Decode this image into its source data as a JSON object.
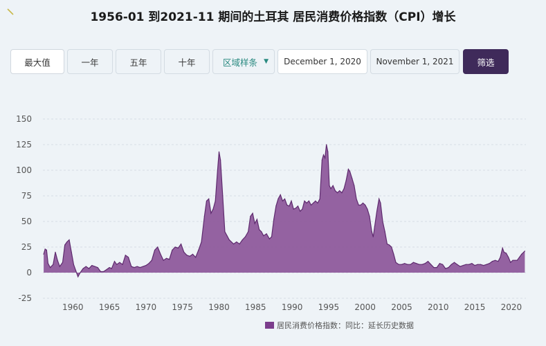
{
  "title": "1956-01 到2021-11 期间的土耳其 居民消费价格指数（CPI）增长",
  "toolbar": {
    "buttons": [
      "最大值",
      "一年",
      "五年",
      "十年"
    ],
    "select_value": "区域样条",
    "date_start": "December 1, 2020",
    "date_end": "November 1, 2021",
    "filter_label": "筛选"
  },
  "colors": {
    "series": "#8e5a9c",
    "series_line": "#5e2a6e",
    "filter_button": "#3f2a5a",
    "select_text": "#2a8a80"
  },
  "chart_data": {
    "type": "area",
    "title": "1956-01 到2021-11 期间的土耳其 居民消费价格指数（CPI）增长",
    "xlabel": "",
    "ylabel": "",
    "ylim": [
      -25,
      150
    ],
    "xlim": [
      1955.9,
      2022
    ],
    "y_ticks": [
      150,
      125,
      100,
      75,
      50,
      25,
      0,
      -25
    ],
    "x_ticks": [
      1960,
      1965,
      1970,
      1975,
      1980,
      1985,
      1990,
      1995,
      2000,
      2005,
      2010,
      2015,
      2020
    ],
    "grid": "horizontal dashed",
    "legend_position": "bottom",
    "series": [
      {
        "name": "居民消费价格指数：同比：延长历史数据",
        "points": [
          [
            1956.0,
            18
          ],
          [
            1956.2,
            23
          ],
          [
            1956.4,
            22
          ],
          [
            1956.6,
            9
          ],
          [
            1956.9,
            5
          ],
          [
            1957.3,
            8
          ],
          [
            1957.6,
            20
          ],
          [
            1957.9,
            12
          ],
          [
            1958.2,
            6
          ],
          [
            1958.6,
            10
          ],
          [
            1958.9,
            27
          ],
          [
            1959.2,
            30
          ],
          [
            1959.5,
            32
          ],
          [
            1959.8,
            20
          ],
          [
            1960.1,
            8
          ],
          [
            1960.4,
            2
          ],
          [
            1960.7,
            -4
          ],
          [
            1961.0,
            0
          ],
          [
            1961.4,
            4
          ],
          [
            1961.8,
            6
          ],
          [
            1962.2,
            4
          ],
          [
            1962.6,
            7
          ],
          [
            1963.0,
            6
          ],
          [
            1963.4,
            5
          ],
          [
            1963.8,
            1
          ],
          [
            1964.2,
            1
          ],
          [
            1964.6,
            3
          ],
          [
            1965.0,
            5
          ],
          [
            1965.3,
            4
          ],
          [
            1965.7,
            11
          ],
          [
            1966.0,
            8
          ],
          [
            1966.4,
            10
          ],
          [
            1966.8,
            8
          ],
          [
            1967.2,
            17
          ],
          [
            1967.6,
            15
          ],
          [
            1968.0,
            6
          ],
          [
            1968.4,
            5
          ],
          [
            1968.8,
            6
          ],
          [
            1969.2,
            5
          ],
          [
            1969.6,
            6
          ],
          [
            1970.0,
            7
          ],
          [
            1970.4,
            9
          ],
          [
            1970.8,
            12
          ],
          [
            1971.2,
            22
          ],
          [
            1971.6,
            25
          ],
          [
            1972.0,
            18
          ],
          [
            1972.4,
            12
          ],
          [
            1972.8,
            14
          ],
          [
            1973.2,
            13
          ],
          [
            1973.6,
            22
          ],
          [
            1974.0,
            25
          ],
          [
            1974.4,
            24
          ],
          [
            1974.8,
            28
          ],
          [
            1975.2,
            20
          ],
          [
            1975.6,
            17
          ],
          [
            1976.0,
            16
          ],
          [
            1976.4,
            18
          ],
          [
            1976.8,
            15
          ],
          [
            1977.2,
            22
          ],
          [
            1977.6,
            30
          ],
          [
            1978.0,
            55
          ],
          [
            1978.3,
            70
          ],
          [
            1978.6,
            72
          ],
          [
            1978.9,
            58
          ],
          [
            1979.2,
            62
          ],
          [
            1979.5,
            70
          ],
          [
            1979.8,
            100
          ],
          [
            1980.0,
            118
          ],
          [
            1980.2,
            110
          ],
          [
            1980.5,
            75
          ],
          [
            1980.8,
            40
          ],
          [
            1981.1,
            36
          ],
          [
            1981.4,
            32
          ],
          [
            1981.7,
            30
          ],
          [
            1982.0,
            28
          ],
          [
            1982.4,
            30
          ],
          [
            1982.8,
            28
          ],
          [
            1983.2,
            32
          ],
          [
            1983.6,
            35
          ],
          [
            1984.0,
            40
          ],
          [
            1984.3,
            55
          ],
          [
            1984.6,
            58
          ],
          [
            1984.9,
            48
          ],
          [
            1985.2,
            52
          ],
          [
            1985.5,
            42
          ],
          [
            1985.8,
            40
          ],
          [
            1986.1,
            36
          ],
          [
            1986.5,
            38
          ],
          [
            1986.9,
            33
          ],
          [
            1987.2,
            35
          ],
          [
            1987.5,
            52
          ],
          [
            1987.8,
            65
          ],
          [
            1988.1,
            72
          ],
          [
            1988.4,
            76
          ],
          [
            1988.7,
            70
          ],
          [
            1989.0,
            72
          ],
          [
            1989.3,
            66
          ],
          [
            1989.6,
            65
          ],
          [
            1989.9,
            70
          ],
          [
            1990.2,
            62
          ],
          [
            1990.5,
            63
          ],
          [
            1990.8,
            65
          ],
          [
            1991.1,
            60
          ],
          [
            1991.4,
            62
          ],
          [
            1991.7,
            70
          ],
          [
            1992.0,
            68
          ],
          [
            1992.3,
            70
          ],
          [
            1992.6,
            66
          ],
          [
            1992.9,
            68
          ],
          [
            1993.2,
            70
          ],
          [
            1993.5,
            68
          ],
          [
            1993.8,
            72
          ],
          [
            1994.1,
            110
          ],
          [
            1994.3,
            115
          ],
          [
            1994.5,
            112
          ],
          [
            1994.7,
            125
          ],
          [
            1994.9,
            118
          ],
          [
            1995.1,
            85
          ],
          [
            1995.3,
            82
          ],
          [
            1995.6,
            85
          ],
          [
            1995.9,
            80
          ],
          [
            1996.2,
            78
          ],
          [
            1996.5,
            80
          ],
          [
            1996.8,
            78
          ],
          [
            1997.1,
            82
          ],
          [
            1997.4,
            90
          ],
          [
            1997.7,
            101
          ],
          [
            1997.9,
            99
          ],
          [
            1998.2,
            92
          ],
          [
            1998.5,
            85
          ],
          [
            1998.8,
            72
          ],
          [
            1999.1,
            66
          ],
          [
            1999.4,
            66
          ],
          [
            1999.7,
            68
          ],
          [
            2000.0,
            66
          ],
          [
            2000.3,
            62
          ],
          [
            2000.6,
            55
          ],
          [
            2000.9,
            40
          ],
          [
            2001.1,
            35
          ],
          [
            2001.3,
            45
          ],
          [
            2001.6,
            60
          ],
          [
            2001.9,
            72
          ],
          [
            2002.1,
            68
          ],
          [
            2002.4,
            50
          ],
          [
            2002.7,
            40
          ],
          [
            2003.0,
            28
          ],
          [
            2003.3,
            27
          ],
          [
            2003.6,
            25
          ],
          [
            2003.9,
            18
          ],
          [
            2004.2,
            10
          ],
          [
            2004.6,
            8
          ],
          [
            2005.0,
            8
          ],
          [
            2005.4,
            9
          ],
          [
            2005.8,
            8
          ],
          [
            2006.2,
            8
          ],
          [
            2006.6,
            10
          ],
          [
            2007.0,
            9
          ],
          [
            2007.4,
            8
          ],
          [
            2007.8,
            8
          ],
          [
            2008.2,
            9
          ],
          [
            2008.6,
            11
          ],
          [
            2009.0,
            8
          ],
          [
            2009.4,
            5
          ],
          [
            2009.8,
            5
          ],
          [
            2010.2,
            9
          ],
          [
            2010.6,
            8
          ],
          [
            2011.0,
            4
          ],
          [
            2011.4,
            5
          ],
          [
            2011.8,
            8
          ],
          [
            2012.2,
            10
          ],
          [
            2012.6,
            8
          ],
          [
            2013.0,
            6
          ],
          [
            2013.4,
            7
          ],
          [
            2013.8,
            8
          ],
          [
            2014.2,
            8
          ],
          [
            2014.6,
            9
          ],
          [
            2015.0,
            7
          ],
          [
            2015.4,
            8
          ],
          [
            2015.8,
            8
          ],
          [
            2016.2,
            7
          ],
          [
            2016.6,
            8
          ],
          [
            2017.0,
            9
          ],
          [
            2017.4,
            11
          ],
          [
            2017.8,
            12
          ],
          [
            2018.2,
            11
          ],
          [
            2018.5,
            15
          ],
          [
            2018.8,
            24
          ],
          [
            2019.0,
            20
          ],
          [
            2019.3,
            19
          ],
          [
            2019.6,
            15
          ],
          [
            2019.9,
            10
          ],
          [
            2020.2,
            12
          ],
          [
            2020.5,
            12
          ],
          [
            2020.8,
            12
          ],
          [
            2021.1,
            15
          ],
          [
            2021.4,
            18
          ],
          [
            2021.7,
            20
          ],
          [
            2021.85,
            21
          ]
        ]
      }
    ]
  }
}
